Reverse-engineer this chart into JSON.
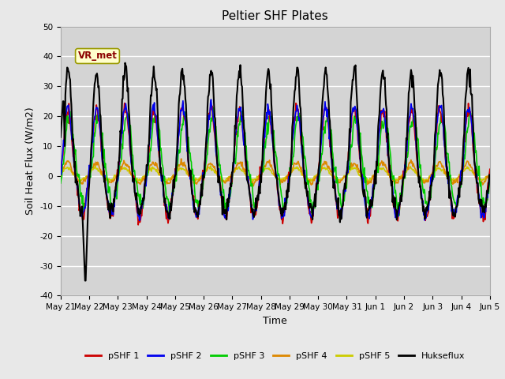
{
  "title": "Peltier SHF Plates",
  "xlabel": "Time",
  "ylabel": "Soil Heat Flux (W/m2)",
  "ylim": [
    -40,
    50
  ],
  "yticks": [
    -40,
    -30,
    -20,
    -10,
    0,
    10,
    20,
    30,
    40,
    50
  ],
  "annotation_text": "VR_met",
  "x_tick_labels": [
    "May 21",
    "May 22",
    "May 23",
    "May 24",
    "May 25",
    "May 26",
    "May 27",
    "May 28",
    "May 29",
    "May 30",
    "May 31",
    "Jun 1",
    "Jun 2",
    "Jun 3",
    "Jun 4",
    "Jun 5"
  ],
  "series_colors": {
    "pSHF 1": "#cc0000",
    "pSHF 2": "#0000ee",
    "pSHF 3": "#00cc00",
    "pSHF 4": "#dd8800",
    "pSHF 5": "#cccc00",
    "Hukseflux": "#000000"
  },
  "fig_bg_color": "#e8e8e8",
  "plot_bg_color": "#d4d4d4",
  "grid_color": "#ffffff",
  "title_fontsize": 11,
  "label_fontsize": 9,
  "tick_fontsize": 7.5
}
